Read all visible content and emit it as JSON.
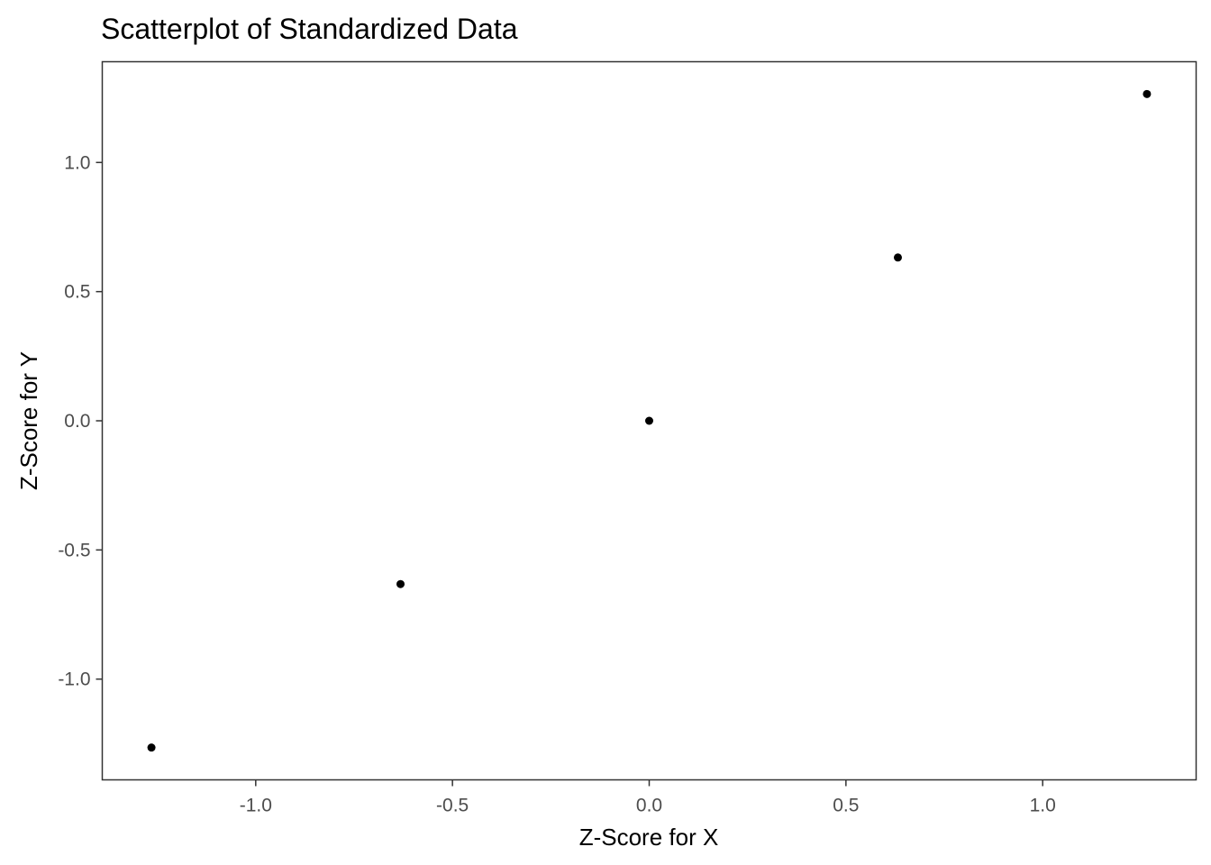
{
  "chart_data": {
    "type": "scatter",
    "title": "Scatterplot of Standardized Data",
    "xlabel": "Z-Score for X",
    "ylabel": "Z-Score for Y",
    "xlim": [
      -1.39,
      1.39
    ],
    "ylim": [
      -1.39,
      1.39
    ],
    "x_ticks": [
      -1.0,
      -0.5,
      0.0,
      0.5,
      1.0
    ],
    "y_ticks": [
      -1.0,
      -0.5,
      0.0,
      0.5,
      1.0
    ],
    "x_tick_labels": [
      "-1.0",
      "-0.5",
      "0.0",
      "0.5",
      "1.0"
    ],
    "y_tick_labels": [
      "-1.0",
      "-0.5",
      "0.0",
      "0.5",
      "1.0"
    ],
    "grid": false,
    "point_color": "#000000",
    "panel_border_color": "#333333",
    "tick_color": "#333333",
    "series": [
      {
        "points": [
          {
            "x": -1.265,
            "y": -1.265
          },
          {
            "x": -0.632,
            "y": -0.632
          },
          {
            "x": 0.0,
            "y": 0.0
          },
          {
            "x": 0.632,
            "y": 0.632
          },
          {
            "x": 1.265,
            "y": 1.265
          }
        ]
      }
    ]
  }
}
